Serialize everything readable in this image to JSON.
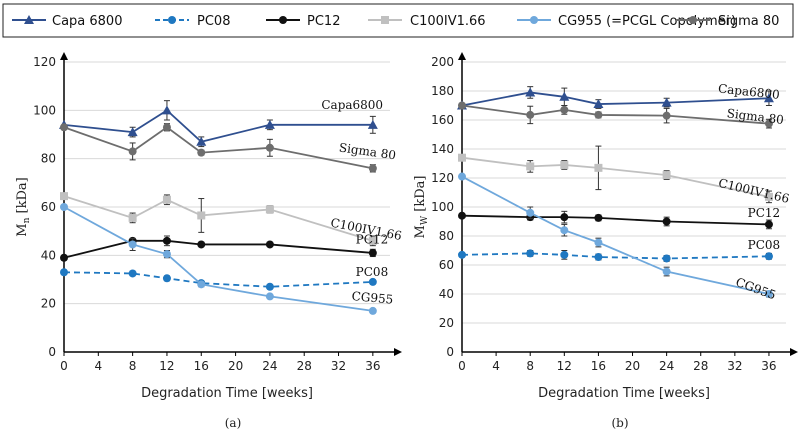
{
  "legend": [
    {
      "name": "Capa 6800",
      "color": "#2f4f8f",
      "dash": false,
      "marker": "triangle"
    },
    {
      "name": "PC08",
      "color": "#1f78c1",
      "dash": true,
      "marker": "circle"
    },
    {
      "name": "PC12",
      "color": "#111111",
      "dash": false,
      "marker": "circle"
    },
    {
      "name": "C100IV1.66",
      "color": "#c0c0c0",
      "dash": false,
      "marker": "square"
    },
    {
      "name": "CG955 (=PCGL Copolymer)",
      "color": "#6fa8dc",
      "dash": false,
      "marker": "circle"
    },
    {
      "name": "Sigma 80",
      "color": "#6d6d6d",
      "dash": false,
      "marker": "circle"
    }
  ],
  "chart_data": [
    {
      "type": "line",
      "panel_label": "(a)",
      "xlabel": "Degradation Time [weeks]",
      "ylabel_main": "M",
      "ylabel_sub": "n",
      "ylabel_unit": " [kDa]",
      "xlim": [
        0,
        38
      ],
      "ylim": [
        0,
        120
      ],
      "xticks": [
        0,
        4,
        8,
        12,
        16,
        20,
        24,
        28,
        32,
        36
      ],
      "yticks": [
        0,
        20,
        40,
        60,
        80,
        100,
        120
      ],
      "x": [
        0,
        8,
        12,
        16,
        24,
        36
      ],
      "series": [
        {
          "name": "Capa 6800",
          "values": [
            94,
            91,
            100,
            87,
            94,
            94
          ],
          "err": [
            0,
            2,
            4,
            2,
            2,
            3.5
          ],
          "label": "Capa6800",
          "label_at": [
            30,
            100.5
          ],
          "label_rot": 0
        },
        {
          "name": "Sigma 80",
          "values": [
            93,
            83,
            93,
            82.5,
            84.5,
            76
          ],
          "err": [
            0,
            3.5,
            1.5,
            1,
            3.5,
            1.5
          ],
          "label": "Sigma 80",
          "label_at": [
            32,
            83
          ],
          "label_rot": 8
        },
        {
          "name": "C100IV1.66",
          "values": [
            64.5,
            55.5,
            63,
            56.5,
            59,
            46
          ],
          "err": [
            0,
            2,
            2,
            7,
            1.5,
            2
          ],
          "label": "C100IV1.66",
          "label_at": [
            31,
            52
          ],
          "label_rot": 11
        },
        {
          "name": "PC12",
          "values": [
            39,
            46,
            46,
            44.5,
            44.5,
            41
          ],
          "err": [
            0,
            0,
            2,
            0,
            0,
            1.5
          ],
          "label": "PC12",
          "label_at": [
            34,
            45
          ],
          "label_rot": 0
        },
        {
          "name": "PC08",
          "values": [
            33,
            32.5,
            30.5,
            28.5,
            27,
            29
          ],
          "err": [
            0,
            0,
            1,
            0,
            0,
            0
          ],
          "label": "PC08",
          "label_at": [
            34,
            31.5
          ],
          "label_rot": 0
        },
        {
          "name": "CG955 (=PCGL Copolymer)",
          "values": [
            60,
            44.5,
            40.5,
            28,
            23,
            17
          ],
          "err": [
            0,
            2.5,
            1.5,
            1,
            0,
            0
          ],
          "label": "CG955",
          "label_at": [
            33.5,
            21.5
          ],
          "label_rot": 5
        }
      ]
    },
    {
      "type": "line",
      "panel_label": "(b)",
      "xlabel": "Degradation Time [weeks]",
      "ylabel_main": "M",
      "ylabel_sub": "W",
      "ylabel_unit": " [kDa]",
      "xlim": [
        0,
        38
      ],
      "ylim": [
        0,
        200
      ],
      "xticks": [
        0,
        4,
        8,
        12,
        16,
        20,
        24,
        28,
        32,
        36
      ],
      "yticks": [
        0,
        20,
        40,
        60,
        80,
        100,
        120,
        140,
        160,
        180,
        200
      ],
      "x": [
        0,
        8,
        12,
        16,
        24,
        36
      ],
      "series": [
        {
          "name": "Capa 6800",
          "values": [
            170,
            179,
            176,
            171,
            172,
            175
          ],
          "err": [
            0,
            4,
            6,
            3,
            3,
            5
          ],
          "label": "Capa6800",
          "label_at": [
            30,
            179
          ],
          "label_rot": 6
        },
        {
          "name": "Sigma 80",
          "values": [
            170,
            163.5,
            167,
            163.5,
            163,
            157.5
          ],
          "err": [
            0,
            6,
            3,
            2,
            5,
            3
          ],
          "label": "Sigma 80",
          "label_at": [
            31,
            162
          ],
          "label_rot": 7
        },
        {
          "name": "C100IV1.66",
          "values": [
            134,
            128,
            129,
            127,
            122,
            107
          ],
          "err": [
            0,
            4,
            3,
            15,
            3,
            4
          ],
          "label": "C100IV1.66",
          "label_at": [
            30,
            114
          ],
          "label_rot": 13
        },
        {
          "name": "PC12",
          "values": [
            94,
            93,
            93,
            92.5,
            90,
            88
          ],
          "err": [
            0,
            2,
            4,
            2,
            3,
            3
          ],
          "label": "PC12",
          "label_at": [
            33.5,
            93
          ],
          "label_rot": 0
        },
        {
          "name": "PC08",
          "values": [
            67,
            68,
            67,
            65.5,
            64.5,
            66
          ],
          "err": [
            0,
            2,
            3,
            2,
            2,
            2
          ],
          "label": "PC08",
          "label_at": [
            33.5,
            71
          ],
          "label_rot": 0
        },
        {
          "name": "CG955 (=PCGL Copolymer)",
          "values": [
            121,
            96,
            84,
            75.5,
            55.5,
            40
          ],
          "err": [
            0,
            4,
            4,
            3,
            3,
            2
          ],
          "label": "CG955",
          "label_at": [
            32,
            46
          ],
          "label_rot": 20
        }
      ]
    }
  ]
}
